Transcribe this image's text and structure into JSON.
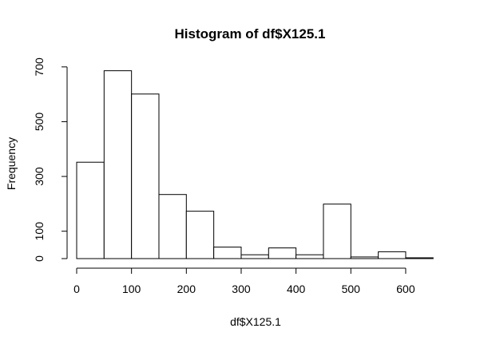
{
  "chart_data": {
    "type": "bar",
    "title": "Histogram of df$X125.1",
    "xlabel": "df$X125.1",
    "ylabel": "Frequency",
    "bin_edges": [
      0,
      50,
      100,
      150,
      200,
      250,
      300,
      350,
      400,
      450,
      500,
      550,
      600,
      650
    ],
    "values": [
      352,
      686,
      601,
      234,
      173,
      42,
      14,
      39,
      14,
      199,
      6,
      25,
      3
    ],
    "xlim": [
      0,
      650
    ],
    "ylim": [
      0,
      700
    ],
    "xticks": [
      0,
      100,
      200,
      300,
      400,
      500,
      600
    ],
    "yticks": [
      0,
      100,
      300,
      500,
      700
    ],
    "grid": false,
    "bar_fill": "#ffffff",
    "bar_stroke": "#000000"
  }
}
